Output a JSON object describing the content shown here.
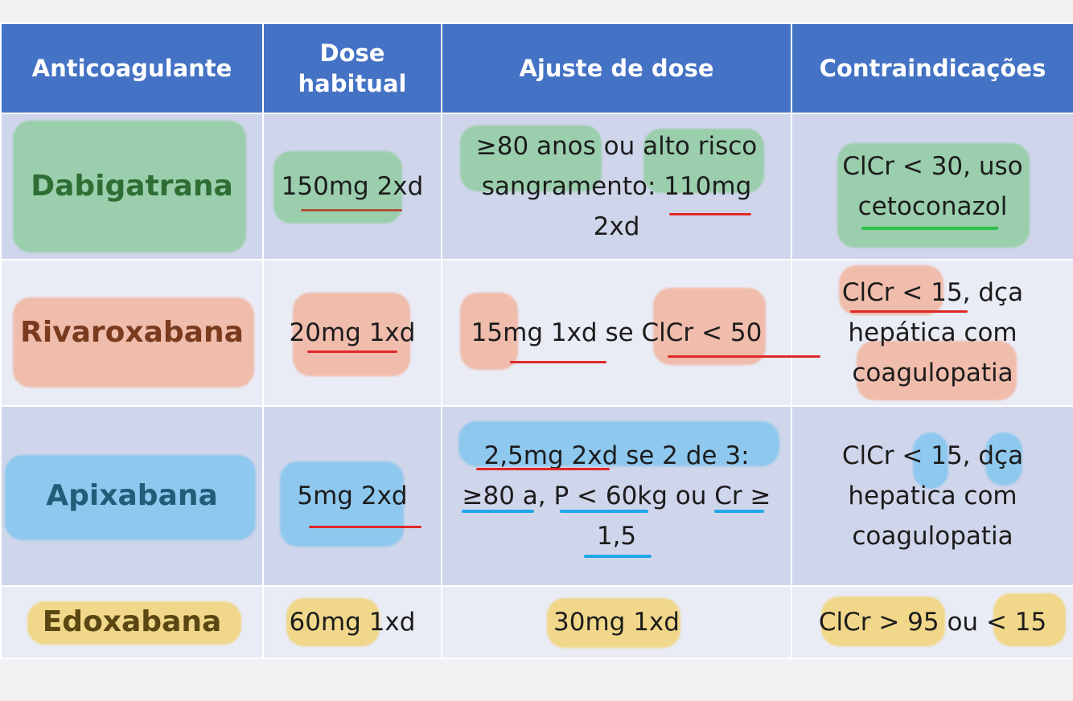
{
  "header": {
    "col1": "Anticoagulante",
    "col2_line1": "Dose",
    "col2_line2": "habitual",
    "col3": "Ajuste de dose",
    "col4": "Contraindicações"
  },
  "rows": [
    {
      "drug": "Dabigatrana",
      "dose": "150mg 2xd",
      "adjust_line1": "≥80 anos ou alto risco",
      "adjust_line2": "sangramento: 110mg",
      "adjust_line3": "2xd",
      "contra_line1": "ClCr < 30, uso",
      "contra_line2": "cetoconazol"
    },
    {
      "drug": "Rivaroxabana",
      "dose": "20mg 1xd",
      "adjust_line1": "15mg 1xd se ClCr < 50",
      "contra_line1": "ClCr < 15, dça",
      "contra_line2": "hepática com",
      "contra_line3": "coagulopatia"
    },
    {
      "drug": "Apixabana",
      "dose": "5mg 2xd",
      "adjust_line1": "2,5mg 2xd se 2 de 3:",
      "adjust_line2": "≥80 a, P < 60kg ou Cr ≥",
      "adjust_line3": "1,5",
      "contra_line1": "ClCr < 15, dça",
      "contra_line2": "hepatica com",
      "contra_line3": "coagulopatia"
    },
    {
      "drug": "Edoxabana",
      "dose": "60mg 1xd",
      "adjust_line1": "30mg 1xd",
      "contra_line1": "ClCr > 95 ou < 15"
    }
  ],
  "colors": {
    "header_bg": "#4472c4",
    "row_dark": "#cfd5ea",
    "row_light": "#e9ebf5",
    "highlight_green": "#70c878",
    "highlight_orange": "#f5966e",
    "highlight_blue": "#5abef0",
    "highlight_yellow": "#f5cd50"
  }
}
